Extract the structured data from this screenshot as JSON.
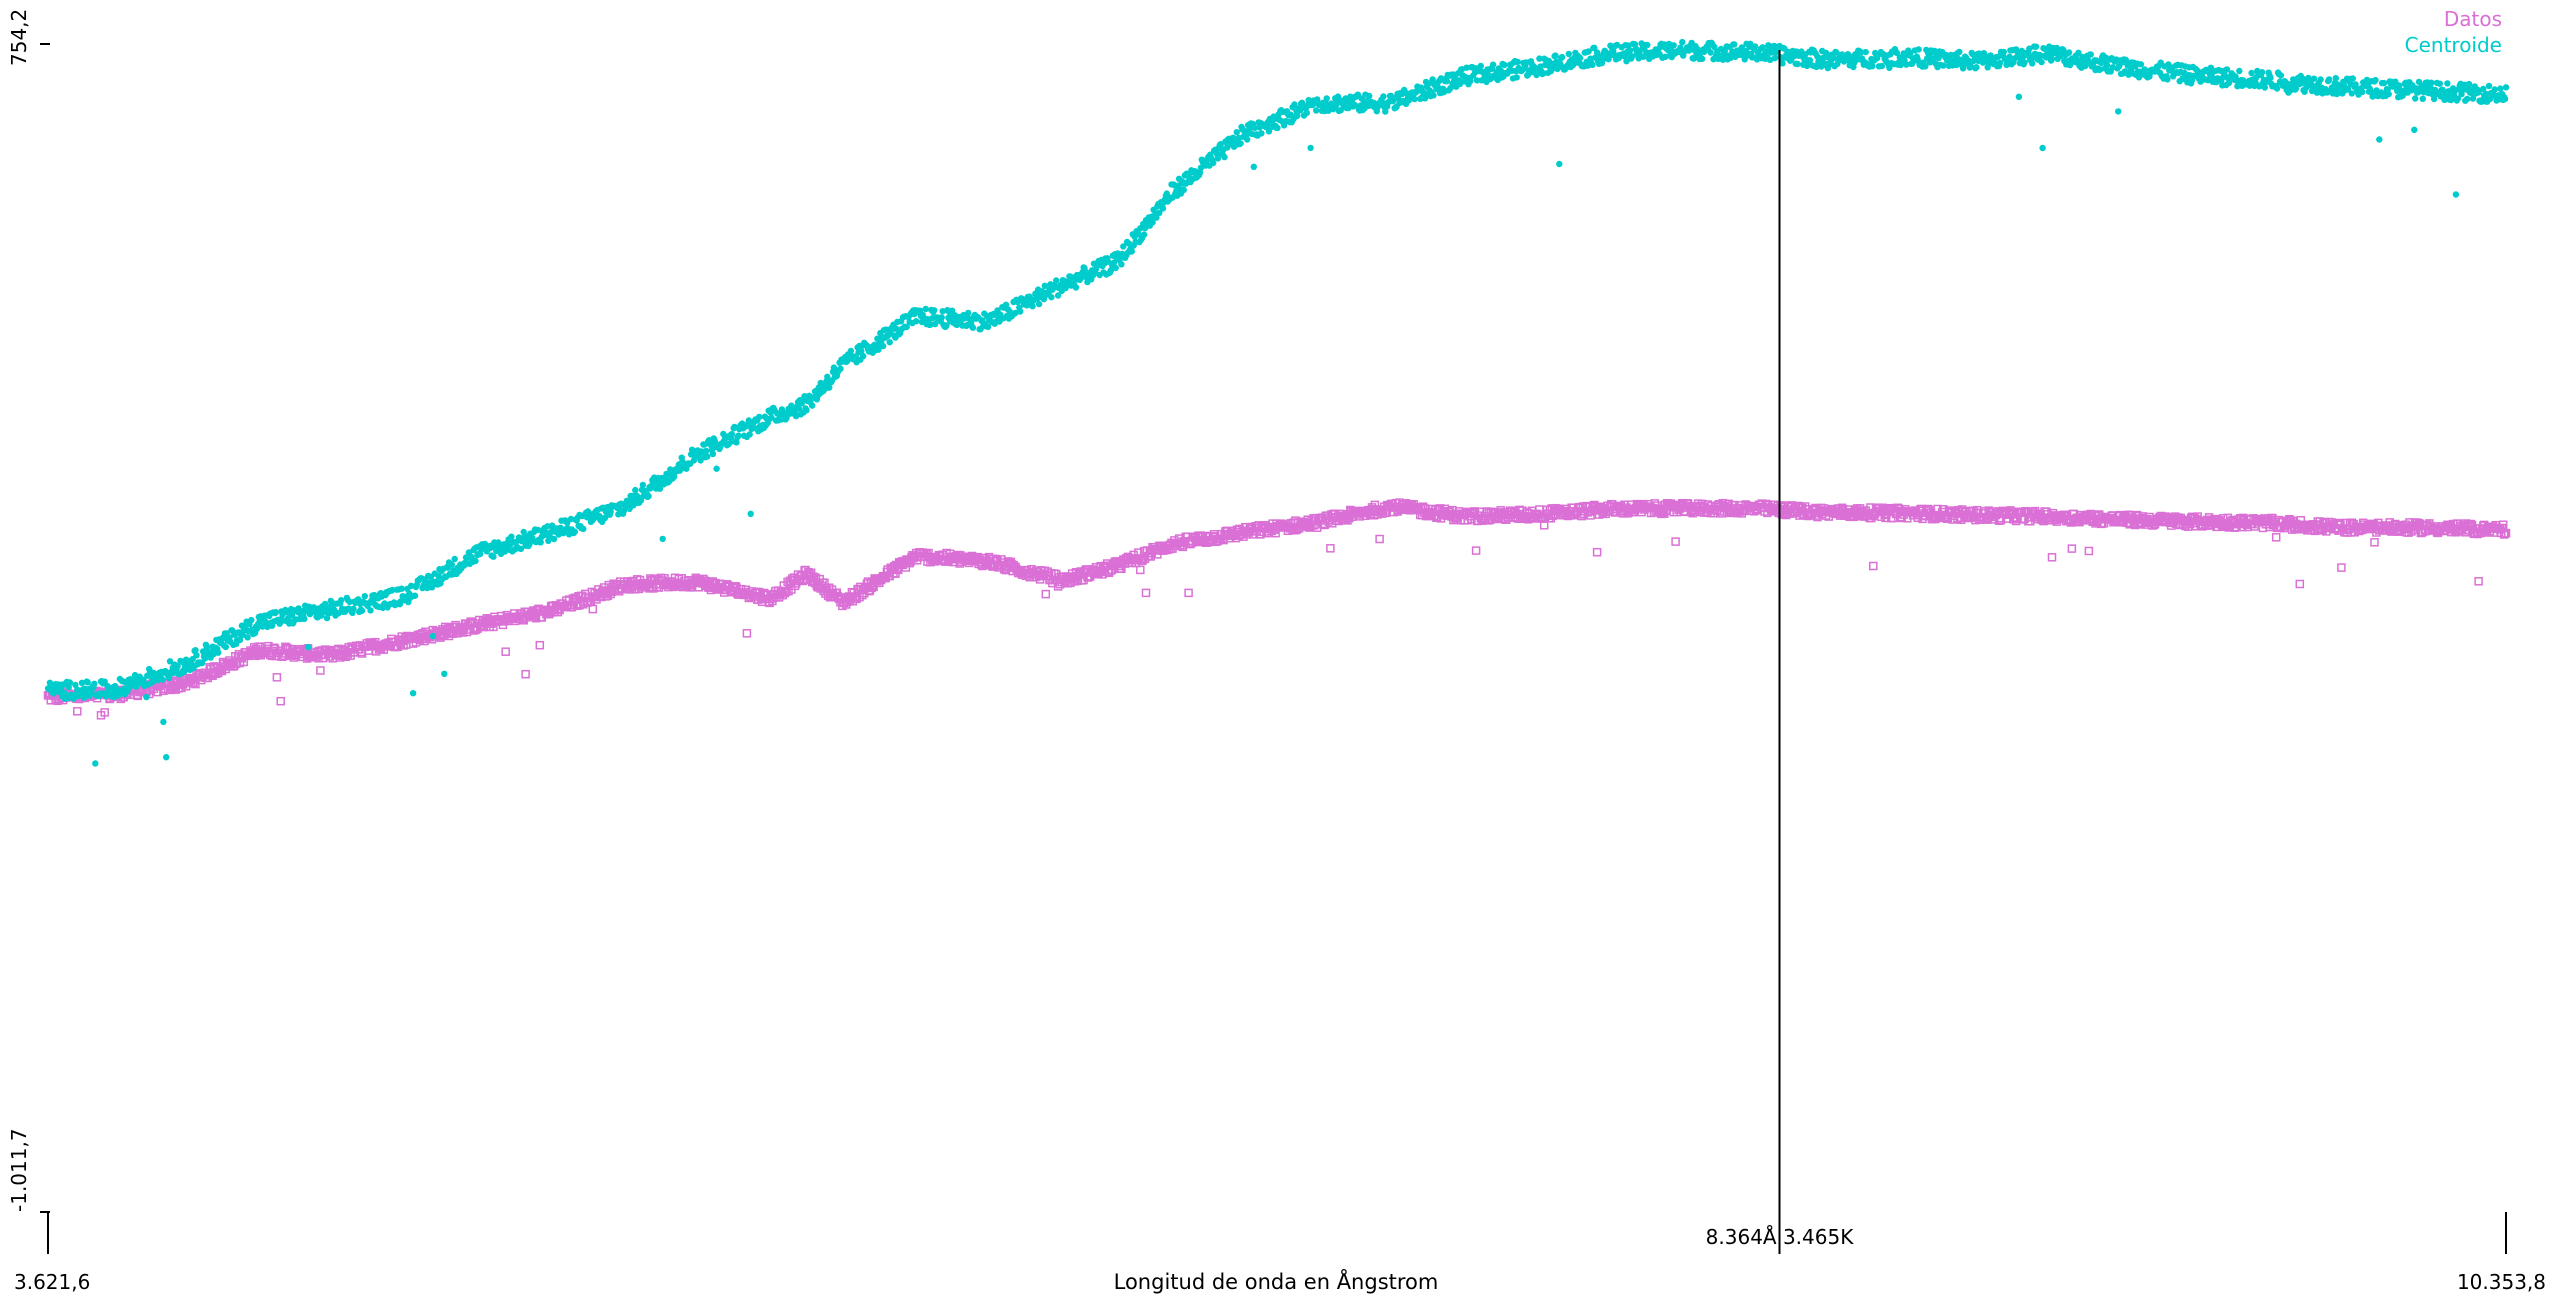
{
  "chart_data": {
    "type": "scatter",
    "xlabel": "Longitud de onda en Ångstrom",
    "ylabel": "",
    "xlim": [
      3621.6,
      10353.8
    ],
    "ylim": [
      -1011.7,
      754.2
    ],
    "x_tick_labels": [
      "3.621,6",
      "10.353,8"
    ],
    "y_tick_labels": [
      "754,2",
      "-1.011,7"
    ],
    "cursor": {
      "x": 8364,
      "label": "8.364Å 3.465K"
    },
    "legend": {
      "position": "top-right"
    },
    "grid": false,
    "series": [
      {
        "name": "Datos",
        "color": "#da70d6",
        "marker": "square-open",
        "x": [
          3621.6,
          3800,
          4000,
          4200,
          4400,
          4600,
          4800,
          5000,
          5200,
          5400,
          5600,
          5700,
          5800,
          6000,
          6200,
          6400,
          6550,
          6700,
          6900,
          7100,
          7300,
          7500,
          7700,
          7900,
          8100,
          8300,
          8500,
          8700,
          8900,
          9100,
          9300,
          9500,
          9700,
          9900,
          10100,
          10353.8
        ],
        "y": [
          -233,
          -230,
          -212,
          -162,
          -170,
          -147,
          -124,
          -103,
          -63,
          -59,
          -84,
          -47,
          -90,
          -20,
          -28,
          -57,
          -35,
          -2,
          16,
          31,
          55,
          40,
          43,
          51,
          52,
          52,
          46,
          45,
          42,
          40,
          35,
          32,
          30,
          23,
          23,
          20
        ]
      },
      {
        "name": "Centroide",
        "color": "#00cccc",
        "marker": "circle",
        "x": [
          3621.6,
          3800,
          4000,
          4200,
          4400,
          4600,
          4800,
          5000,
          5200,
          5400,
          5600,
          5700,
          5800,
          6000,
          6200,
          6400,
          6550,
          6700,
          6900,
          7100,
          7300,
          7500,
          7700,
          7900,
          8100,
          8300,
          8500,
          8700,
          8900,
          9100,
          9300,
          9500,
          9700,
          9900,
          10100,
          10353.8
        ],
        "y": [
          -223,
          -222,
          -183,
          -120,
          -100,
          -80,
          -15,
          15,
          55,
          135,
          190,
          210,
          270,
          342,
          335,
          390,
          425,
          530,
          620,
          665,
          665,
          705,
          720,
          740,
          745,
          742,
          730,
          735,
          728,
          740,
          720,
          707,
          700,
          690,
          685,
          678
        ]
      }
    ]
  }
}
